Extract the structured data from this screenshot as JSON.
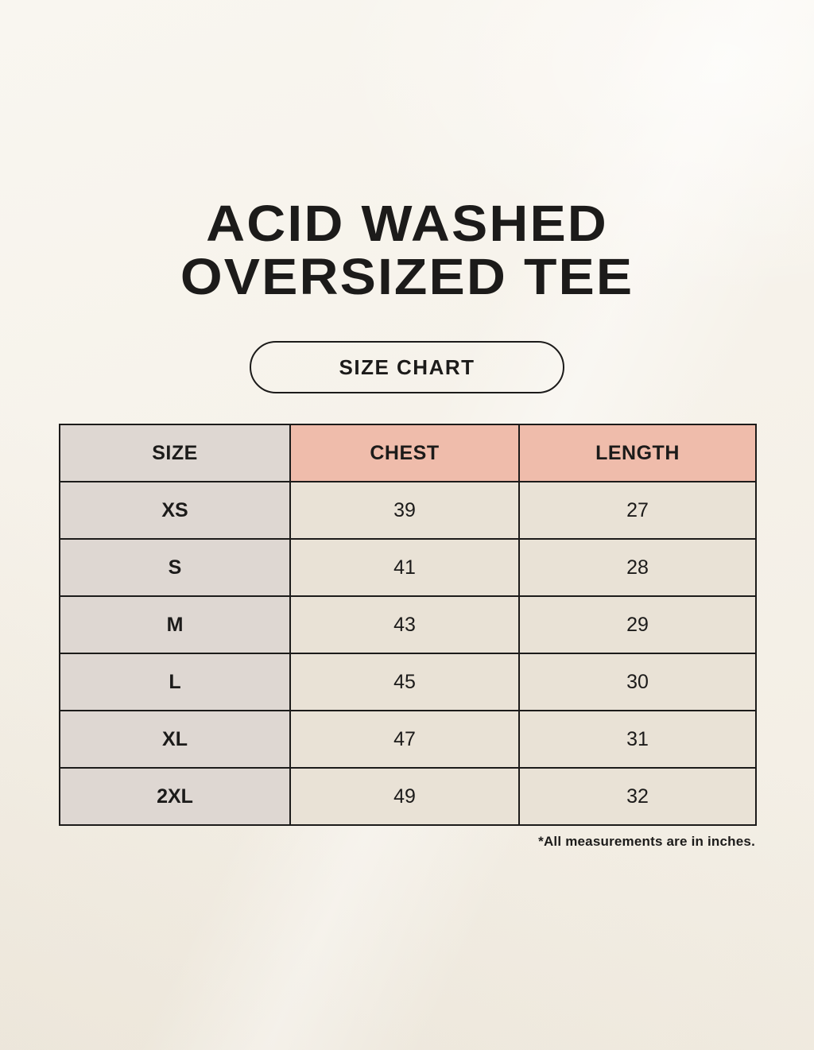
{
  "header": {
    "title_line1": "ACID WASHED",
    "title_line2": "OVERSIZED TEE",
    "badge_label": "SIZE CHART"
  },
  "size_table": {
    "columns": [
      "SIZE",
      "CHEST",
      "LENGTH"
    ],
    "rows": [
      {
        "size": "XS",
        "chest": "39",
        "length": "27"
      },
      {
        "size": "S",
        "chest": "41",
        "length": "28"
      },
      {
        "size": "M",
        "chest": "43",
        "length": "29"
      },
      {
        "size": "L",
        "chest": "45",
        "length": "30"
      },
      {
        "size": "XL",
        "chest": "47",
        "length": "31"
      },
      {
        "size": "2XL",
        "chest": "49",
        "length": "32"
      }
    ]
  },
  "footnote": {
    "text": "*All measurements are in inches."
  },
  "colors": {
    "background": "#f6f2ea",
    "accent_header": "#efbcab",
    "size_column": "#ded7d2",
    "data_cell": "#e9e2d6",
    "border": "#1c1b1a",
    "text": "#1c1b1a"
  }
}
